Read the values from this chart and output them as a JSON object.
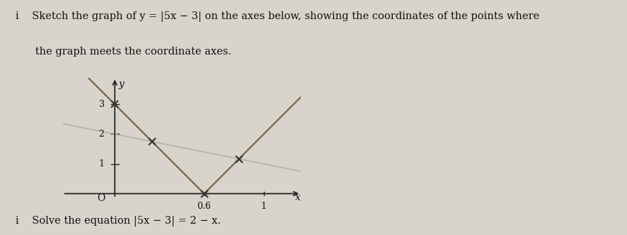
{
  "background_color": "#d8d4cc",
  "axes_color": "#222222",
  "graph_color": "#7a6545",
  "line_color": "#aaaaaa",
  "text_color": "#111111",
  "x_ticks": [
    0.6,
    1.0
  ],
  "x_tick_labels": [
    "0.6",
    "1"
  ],
  "y_ticks": [
    1,
    2,
    3
  ],
  "y_tick_labels": [
    "1",
    "2",
    "3"
  ],
  "xlim": [
    -0.35,
    1.25
  ],
  "ylim": [
    -0.6,
    3.9
  ],
  "xlabel": "x",
  "ylabel": "y",
  "O_label": "O",
  "marker_size": 7,
  "marker_color": "#333333",
  "title_line1": "i    Sketch the graph of y = |5x − 3| on the axes below, showing the coordinates of the points where",
  "title_line2": "      the graph meets the coordinate axes.",
  "subtitle": "i    Solve the equation |5x − 3| = 2 − x.",
  "title_fontsize": 10.5,
  "subtitle_fontsize": 10.5
}
